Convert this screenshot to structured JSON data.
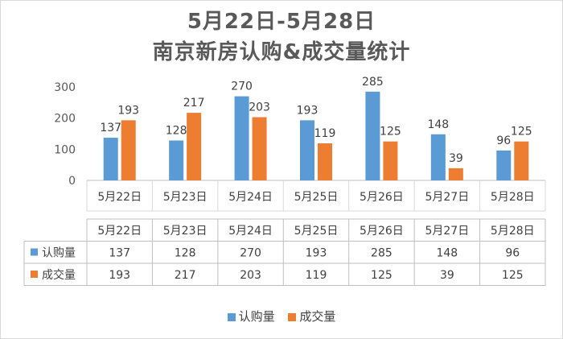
{
  "chart_data": {
    "type": "bar",
    "title": "5月22日-5月28日",
    "subtitle": "南京新房认购&成交量统计",
    "categories": [
      "5月22日",
      "5月23日",
      "5月24日",
      "5月25日",
      "5月26日",
      "5月27日",
      "5月28日"
    ],
    "series": [
      {
        "name": "认购量",
        "color": "#5B9BD5",
        "values": [
          137,
          128,
          270,
          193,
          285,
          148,
          96
        ]
      },
      {
        "name": "成交量",
        "color": "#ED7D31",
        "values": [
          193,
          217,
          203,
          119,
          125,
          39,
          125
        ]
      }
    ],
    "ylim": [
      0,
      300
    ],
    "yticks": [
      0,
      100,
      200,
      300
    ],
    "grid": false,
    "data_table": true,
    "legend": "bottom"
  }
}
